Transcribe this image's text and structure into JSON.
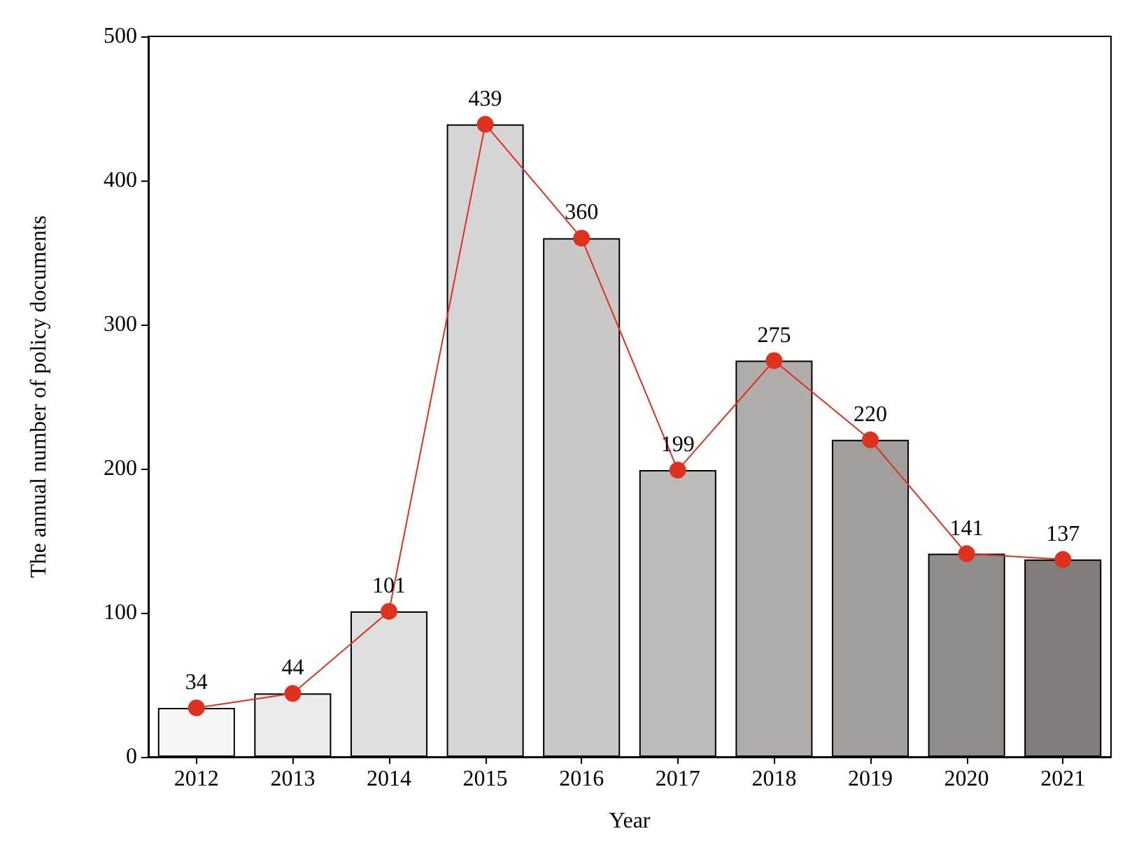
{
  "chart_data": {
    "type": "bar",
    "xlabel": "Year",
    "ylabel": "The annual number of policy documents",
    "categories": [
      "2012",
      "2013",
      "2014",
      "2015",
      "2016",
      "2017",
      "2018",
      "2019",
      "2020",
      "2021"
    ],
    "series": [
      {
        "colors": [
          "#f7f7f7",
          "#ebebeb",
          "#e0dfe0",
          "#d6d5d5",
          "#cac7c7",
          "#bdbaba",
          "#b0adab",
          "#a29e9c",
          "#918d8b",
          "#827d7c"
        ],
        "values": [
          34,
          44,
          101,
          439,
          360,
          199,
          275,
          220,
          141,
          137
        ]
      },
      {
        "type": "line",
        "color": "#e0301e",
        "marker": "circle",
        "values": [
          34,
          44,
          101,
          439,
          360,
          199,
          275,
          220,
          141,
          137
        ],
        "value_labels": [
          "34",
          "44",
          "101",
          "439",
          "360",
          "199",
          "275",
          "220",
          "141",
          "137"
        ]
      }
    ],
    "ylim": [
      0,
      500
    ],
    "yticks": [
      0,
      100,
      200,
      300,
      400,
      500
    ],
    "grid": false
  }
}
